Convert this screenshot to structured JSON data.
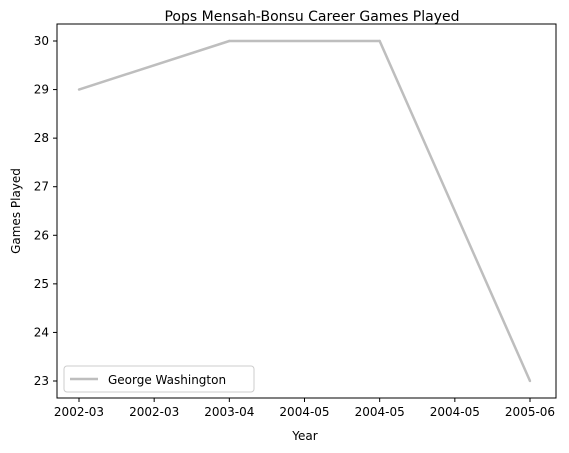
{
  "chart_data": {
    "type": "line",
    "title": "Pops Mensah-Bonsu Career Games Played",
    "xlabel": "Year",
    "ylabel": "Games Played",
    "x_tick_labels": [
      "2002-03",
      "2002-03",
      "2003-04",
      "2004-05",
      "2004-05",
      "2004-05",
      "2005-06"
    ],
    "y_ticks": [
      23,
      24,
      25,
      26,
      27,
      28,
      29,
      30
    ],
    "ylim": [
      22.65,
      30.35
    ],
    "grid": false,
    "legend_position": "lower-left",
    "series": [
      {
        "name": "George Washington",
        "color": "#bebebe",
        "x": [
          "2002-03",
          "2003-04",
          "2004-05",
          "2005-06"
        ],
        "values": [
          29,
          30,
          30,
          23
        ]
      }
    ]
  }
}
